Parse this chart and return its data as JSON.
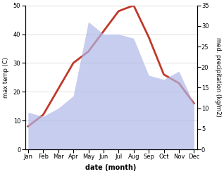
{
  "months": [
    "Jan",
    "Feb",
    "Mar",
    "Apr",
    "May",
    "Jun",
    "Jul",
    "Aug",
    "Sep",
    "Oct",
    "Nov",
    "Dec"
  ],
  "max_temp": [
    8,
    12,
    21,
    30,
    34,
    41,
    48,
    50,
    39,
    26,
    23,
    16
  ],
  "precipitation": [
    9,
    8,
    10,
    13,
    31,
    28,
    28,
    27,
    18,
    17,
    19,
    11
  ],
  "temp_color": "#c0392b",
  "precip_color_fill": "#b0b8e8",
  "title": "",
  "xlabel": "date (month)",
  "ylabel_left": "max temp (C)",
  "ylabel_right": "med. precipitation (kg/m2)",
  "ylim_left": [
    0,
    50
  ],
  "ylim_right": [
    0,
    35
  ],
  "yticks_left": [
    0,
    10,
    20,
    30,
    40,
    50
  ],
  "yticks_right": [
    0,
    5,
    10,
    15,
    20,
    25,
    30,
    35
  ],
  "line_width": 2.0,
  "bg_color": "#ffffff",
  "figsize": [
    3.18,
    2.47
  ],
  "dpi": 100
}
